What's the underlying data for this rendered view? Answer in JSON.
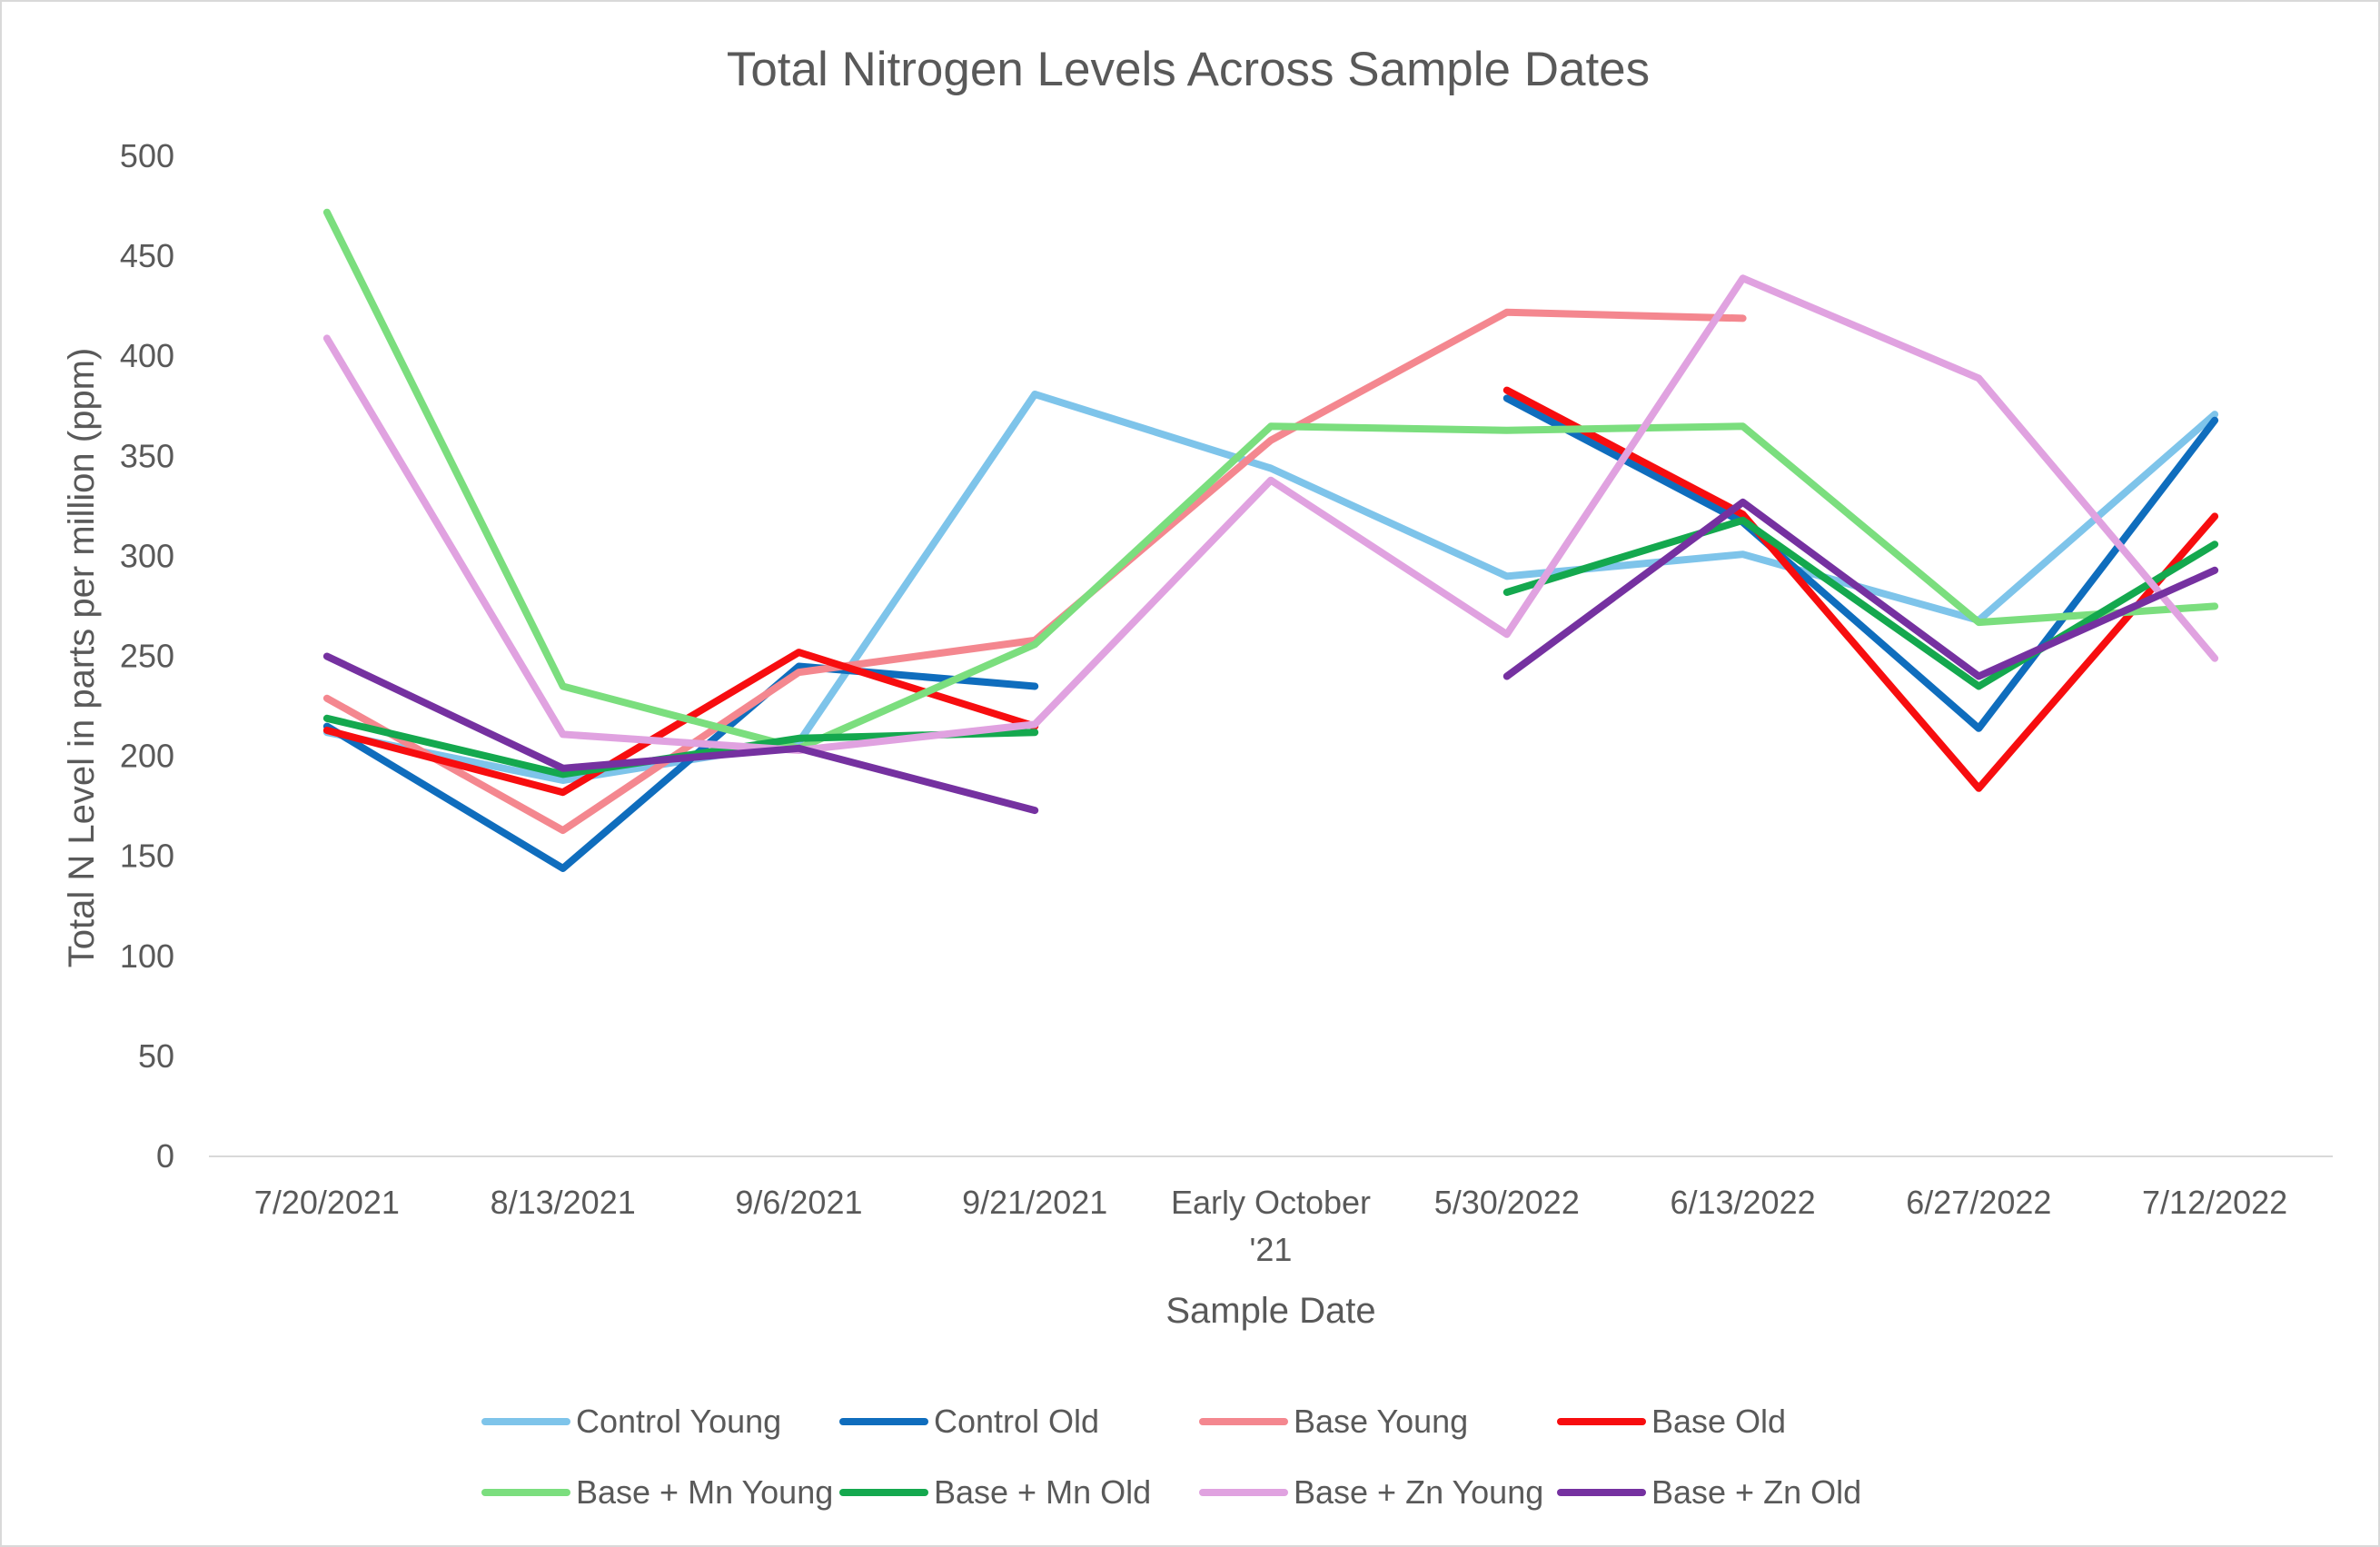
{
  "chart_data": {
    "type": "line",
    "title": "Total Nitrogen Levels Across Sample Dates",
    "xlabel": "Sample Date",
    "ylabel": "Total N Level in parts per million (ppm)",
    "categories": [
      "7/20/2021",
      "8/13/2021",
      "9/6/2021",
      "9/21/2021",
      "Early October '21",
      "5/30/2022",
      "6/13/2022",
      "6/27/2022",
      "7/12/2022"
    ],
    "category_lines": [
      [
        "7/20/2021"
      ],
      [
        "8/13/2021"
      ],
      [
        "9/6/2021"
      ],
      [
        "9/21/2021"
      ],
      [
        "Early October",
        "'21"
      ],
      [
        "5/30/2022"
      ],
      [
        "6/13/2022"
      ],
      [
        "6/27/2022"
      ],
      [
        "7/12/2022"
      ]
    ],
    "ylim": [
      0,
      500
    ],
    "yticks": [
      0,
      50,
      100,
      150,
      200,
      250,
      300,
      350,
      400,
      450,
      500
    ],
    "grid": false,
    "legend_position": "bottom",
    "series": [
      {
        "name": "Control Young",
        "color": "#7EC4EA",
        "values": [
          212,
          188,
          207,
          381,
          344,
          290,
          301,
          268,
          371
        ]
      },
      {
        "name": "Control Old",
        "color": "#0F6DBD",
        "values": [
          215,
          144,
          245,
          235,
          null,
          379,
          317,
          214,
          368
        ]
      },
      {
        "name": "Base Young",
        "color": "#F4878F",
        "values": [
          229,
          163,
          242,
          258,
          358,
          422,
          419,
          null,
          null
        ]
      },
      {
        "name": "Base Old",
        "color": "#F70D0F",
        "values": [
          213,
          182,
          252,
          215,
          null,
          383,
          321,
          184,
          320
        ]
      },
      {
        "name": "Base + Mn Young",
        "color": "#7BDE7E",
        "values": [
          472,
          235,
          204,
          256,
          365,
          363,
          365,
          267,
          275
        ]
      },
      {
        "name": "Base + Mn Old",
        "color": "#14A84E",
        "values": [
          219,
          191,
          209,
          212,
          null,
          282,
          318,
          235,
          306
        ]
      },
      {
        "name": "Base + Zn Young",
        "color": "#E0A2E0",
        "values": [
          409,
          211,
          203,
          216,
          338,
          261,
          439,
          389,
          249
        ]
      },
      {
        "name": "Base + Zn Old",
        "color": "#7531A0",
        "values": [
          250,
          194,
          204,
          173,
          null,
          240,
          327,
          240,
          293
        ]
      }
    ]
  }
}
